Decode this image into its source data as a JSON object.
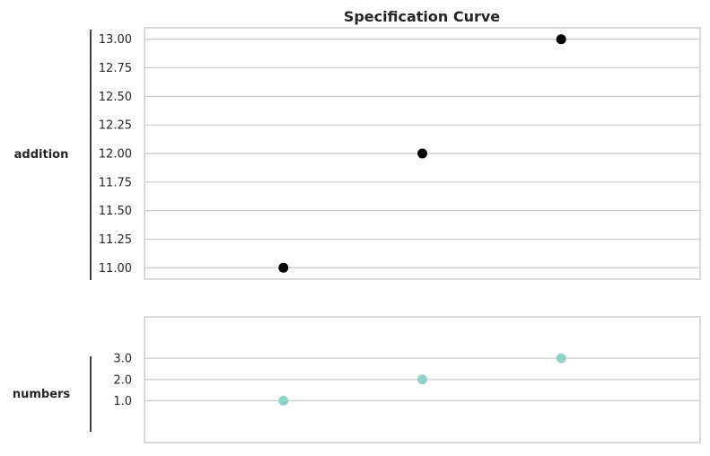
{
  "chart_data": {
    "type": "scatter",
    "title": "Specification Curve",
    "x": [
      1,
      2,
      3
    ],
    "xlim": [
      0,
      4
    ],
    "panels": [
      {
        "label": "addition",
        "yticks": [
          "11.00",
          "11.25",
          "11.50",
          "11.75",
          "12.00",
          "12.25",
          "12.50",
          "12.75",
          "13.00"
        ],
        "ylim": [
          10.9,
          13.1
        ],
        "points": [
          {
            "x": 1,
            "y": 11
          },
          {
            "x": 2,
            "y": 12
          },
          {
            "x": 3,
            "y": 13
          }
        ],
        "marker_color": "#000000"
      },
      {
        "label": "numbers",
        "yticks": [
          "1.0",
          "2.0",
          "3.0"
        ],
        "ylim": [
          -0.97,
          4.95
        ],
        "points": [
          {
            "x": 1,
            "y": 1
          },
          {
            "x": 2,
            "y": 2
          },
          {
            "x": 3,
            "y": 3
          }
        ],
        "marker_color": "#8dd3c7"
      }
    ],
    "grid": true,
    "grid_color": "#cccccc",
    "frame_color": "#cccccc",
    "text_color": "#262626"
  }
}
